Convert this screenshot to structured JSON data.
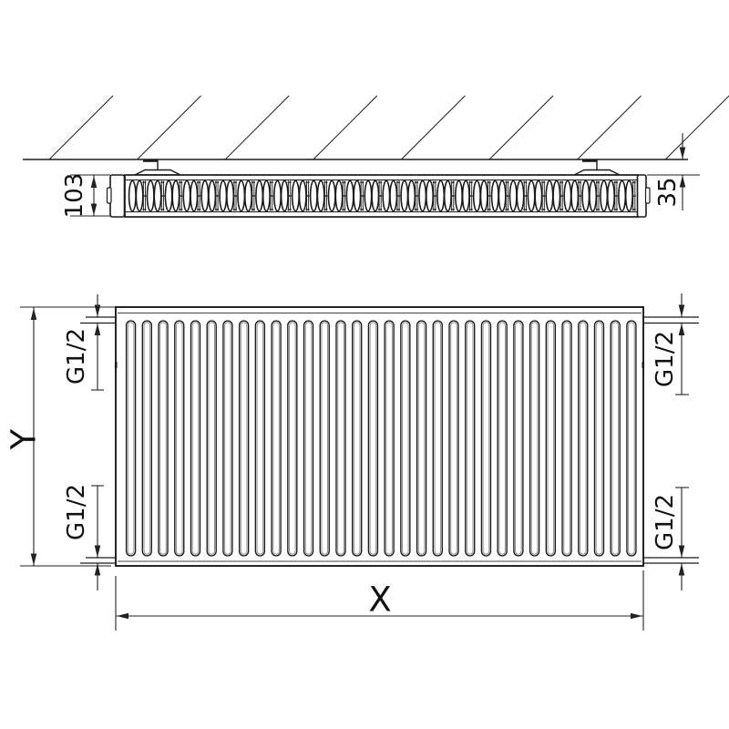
{
  "drawing": {
    "top_view": {
      "depth_dimension_label": "103",
      "wall_distance_label": "35"
    },
    "front_view": {
      "width_label": "X",
      "height_label": "Y",
      "connections": {
        "top_left": "G1/2",
        "top_right": "G1/2",
        "bottom_left": "G1/2",
        "bottom_right": "G1/2"
      }
    },
    "colors": {
      "line": "#1a1a1a",
      "dim_line": "#222222",
      "background": "#ffffff",
      "fin_shading": "#8f8f8f"
    },
    "counts": {
      "front_fins": 32,
      "wall_hatch_lines": 8,
      "convector_tiles": 28
    }
  }
}
